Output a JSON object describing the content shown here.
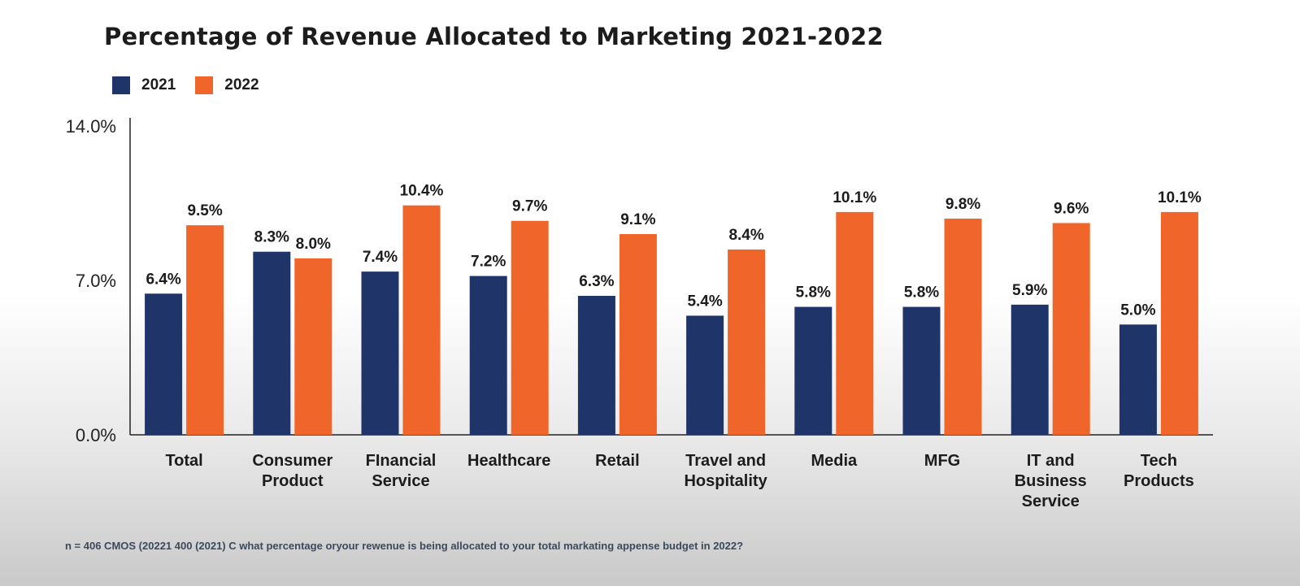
{
  "chart_data": {
    "type": "bar",
    "title": "Percentage of Revenue Allocated to Marketing 2021-2022",
    "categories": [
      [
        "Total"
      ],
      [
        "Consumer",
        "Product"
      ],
      [
        "FInancial",
        "Service"
      ],
      [
        "Healthcare"
      ],
      [
        "Retail"
      ],
      [
        "Travel and",
        "Hospitality"
      ],
      [
        "Media"
      ],
      [
        "MFG"
      ],
      [
        "IT and",
        "Business",
        "Service"
      ],
      [
        "Tech",
        "Products"
      ]
    ],
    "series": [
      {
        "name": "2021",
        "color": "#1f3468",
        "values": [
          6.4,
          8.3,
          7.4,
          7.2,
          6.3,
          5.4,
          5.8,
          5.8,
          5.9,
          5.0
        ],
        "labels": [
          "6.4%",
          "8.3%",
          "7.4%",
          "7.2%",
          "6.3%",
          "5.4%",
          "5.8%",
          "5.8%",
          "5.9%",
          "5.0%"
        ]
      },
      {
        "name": "2022",
        "color": "#f0662a",
        "values": [
          9.5,
          8.0,
          10.4,
          9.7,
          9.1,
          8.4,
          10.1,
          9.8,
          9.6,
          10.1
        ],
        "labels": [
          "9.5%",
          "8.0%",
          "10.4%",
          "9.7%",
          "9.1%",
          "8.4%",
          "10.1%",
          "9.8%",
          "9.6%",
          "10.1%"
        ]
      }
    ],
    "ylim": [
      0,
      14
    ],
    "yticks": [
      0,
      7,
      14
    ],
    "ytick_labels": [
      "0.0%",
      "7.0%",
      "14.0%"
    ],
    "legend_position": "top-left",
    "grid": false
  },
  "footnote": "n = 406 CMOS (20221 400 (2021) C what percentage oryour rewenue is being allocated to your total markating appense budget in 2022?"
}
